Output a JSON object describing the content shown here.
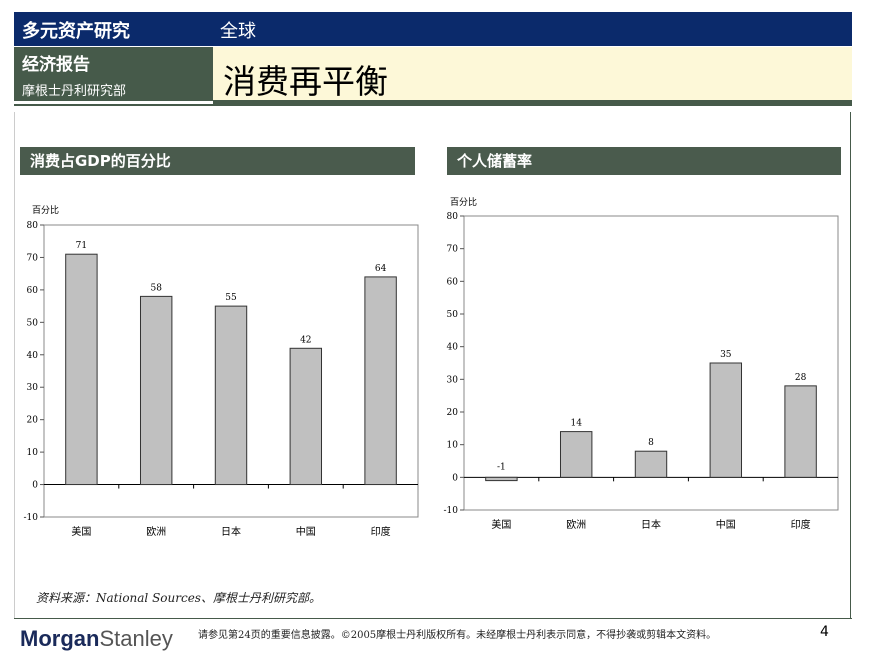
{
  "header": {
    "series_title": "多元资产研究",
    "region": "全球",
    "report_type": "经济报告",
    "team": "摩根士丹利研究部",
    "title": "消费再平衡"
  },
  "sections": [
    {
      "title": "消费占GDP的百分比"
    },
    {
      "title": "个人储蓄率"
    }
  ],
  "chart_data": [
    {
      "type": "bar",
      "title": "消费占GDP的百分比",
      "ylabel": "百分比",
      "categories": [
        "美国",
        "欧洲",
        "日本",
        "中国",
        "印度"
      ],
      "values": [
        71,
        58,
        55,
        42,
        64
      ],
      "value_labels": [
        "71",
        "58",
        "55",
        "42",
        "64"
      ],
      "ylim": [
        -10,
        80
      ],
      "yticks": [
        "-10",
        "0",
        "10",
        "20",
        "30",
        "40",
        "50",
        "60",
        "70",
        "80"
      ],
      "bar_color": "#c0c0c0"
    },
    {
      "type": "bar",
      "title": "个人储蓄率",
      "ylabel": "百分比",
      "categories": [
        "美国",
        "欧洲",
        "日本",
        "中国",
        "印度"
      ],
      "values": [
        -1,
        14,
        8,
        35,
        28
      ],
      "value_labels": [
        "-1",
        "14",
        "8",
        "35",
        "28"
      ],
      "ylim": [
        -10,
        80
      ],
      "yticks": [
        "-10",
        "0",
        "10",
        "20",
        "30",
        "40",
        "50",
        "60",
        "70",
        "80"
      ],
      "bar_color": "#c0c0c0"
    }
  ],
  "source": "资料来源：National Sources、摩根士丹利研究部。",
  "footer": {
    "logo_part1": "Morgan",
    "logo_part2": "Stanley",
    "disclaimer": "请参见第24页的重要信息披露。©2005摩根士丹利版权所有。未经摩根士丹利表示同意，不得抄袭或剪辑本文资料。",
    "page": "4"
  },
  "colors": {
    "navy": "#0b2a6b",
    "green": "#465a4a",
    "cream": "#fdf8d8"
  }
}
